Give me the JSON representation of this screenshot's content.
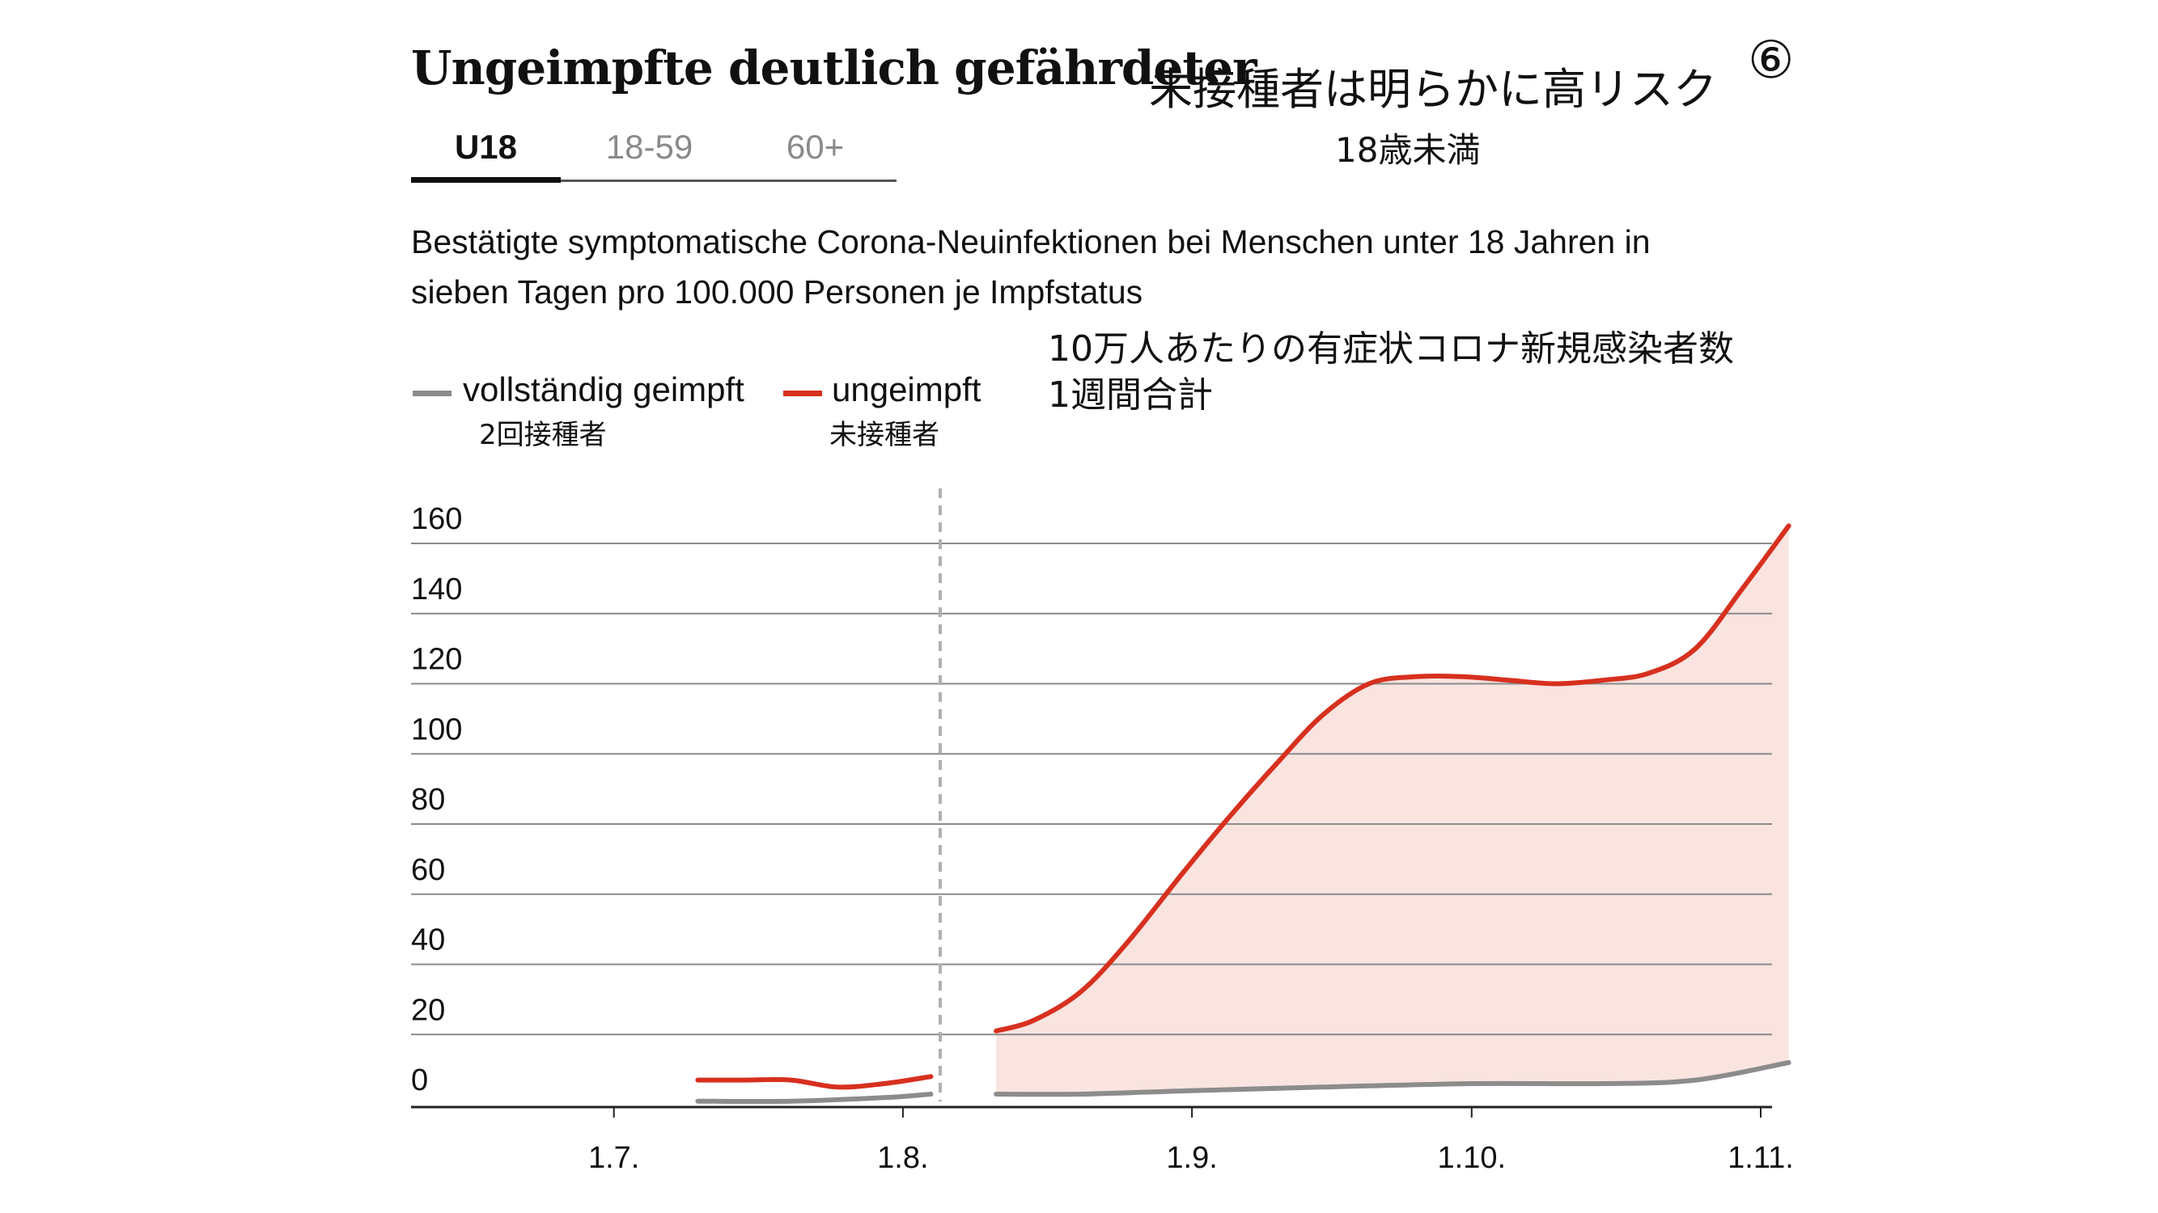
{
  "header": {
    "title": "Ungeimpfte deutlich gefährdeter",
    "jp_title": "未接種者は明らかに高リスク",
    "jp_subtitle": "18歳未満",
    "number_marker": "⑥"
  },
  "tabs": [
    {
      "label": "U18",
      "active": true
    },
    {
      "label": "18-59",
      "active": false
    },
    {
      "label": "60+",
      "active": false
    }
  ],
  "description": {
    "line1": "Bestätigte symptomatische Corona-Neuinfektionen bei Menschen unter 18 Jahren in",
    "line2": "sieben Tagen pro 100.000 Personen je Impfstatus",
    "jp_line1": "10万人あたりの有症状コロナ新規感染者数",
    "jp_line2": "1週間合計"
  },
  "legend": {
    "vaccinated": {
      "label": "vollständig geimpft",
      "jp": "2回接種者",
      "color": "#8c8c8c"
    },
    "unvaccinated": {
      "label": "ungeimpft",
      "jp": "未接種者",
      "color": "#d7301f"
    }
  },
  "colors": {
    "fill": "#f9e4e0",
    "grid": "#8a8a8a",
    "dashed_line": "#b0b0b0"
  },
  "chart_data": {
    "type": "line",
    "x_ticks": [
      "1.7.",
      "1.8.",
      "1.9.",
      "1.10.",
      "1.11."
    ],
    "xlim": [
      "2021-06-24",
      "2021-11-01"
    ],
    "y_ticks": [
      0,
      20,
      40,
      60,
      80,
      100,
      120,
      140,
      160
    ],
    "ylim": [
      0,
      165
    ],
    "grid": true,
    "legend_position": "top-left",
    "annotations": [
      {
        "type": "vertical-dashed-line",
        "x": "2021-08-05"
      }
    ],
    "series": [
      {
        "name": "ungeimpft",
        "color": "#d7301f",
        "segments": [
          [
            [
              "2021-07-10",
              7
            ],
            [
              "2021-07-15",
              7
            ],
            [
              "2021-07-20",
              7
            ],
            [
              "2021-07-25",
              5
            ],
            [
              "2021-07-30",
              6
            ],
            [
              "2021-08-04",
              8
            ]
          ],
          [
            [
              "2021-08-11",
              21
            ],
            [
              "2021-08-15",
              24
            ],
            [
              "2021-08-20",
              32
            ],
            [
              "2021-08-25",
              46
            ],
            [
              "2021-08-31",
              66
            ],
            [
              "2021-09-05",
              82
            ],
            [
              "2021-09-10",
              97
            ],
            [
              "2021-09-15",
              111
            ],
            [
              "2021-09-20",
              120
            ],
            [
              "2021-09-25",
              122
            ],
            [
              "2021-09-30",
              122
            ],
            [
              "2021-10-05",
              121
            ],
            [
              "2021-10-10",
              120
            ],
            [
              "2021-10-15",
              121
            ],
            [
              "2021-10-20",
              123
            ],
            [
              "2021-10-25",
              130
            ],
            [
              "2021-10-30",
              147
            ],
            [
              "2021-11-04",
              165
            ]
          ]
        ]
      },
      {
        "name": "vollständig geimpft",
        "color": "#8c8c8c",
        "segments": [
          [
            [
              "2021-07-10",
              1
            ],
            [
              "2021-07-20",
              1
            ],
            [
              "2021-07-30",
              2
            ],
            [
              "2021-08-04",
              3
            ]
          ],
          [
            [
              "2021-08-11",
              3
            ],
            [
              "2021-08-20",
              3
            ],
            [
              "2021-09-01",
              4
            ],
            [
              "2021-09-15",
              5
            ],
            [
              "2021-10-01",
              6
            ],
            [
              "2021-10-15",
              6
            ],
            [
              "2021-10-25",
              7
            ],
            [
              "2021-11-04",
              12
            ]
          ]
        ]
      }
    ],
    "fill_between": {
      "series": [
        "ungeimpft",
        "vollständig geimpft"
      ],
      "segment": 1
    }
  }
}
